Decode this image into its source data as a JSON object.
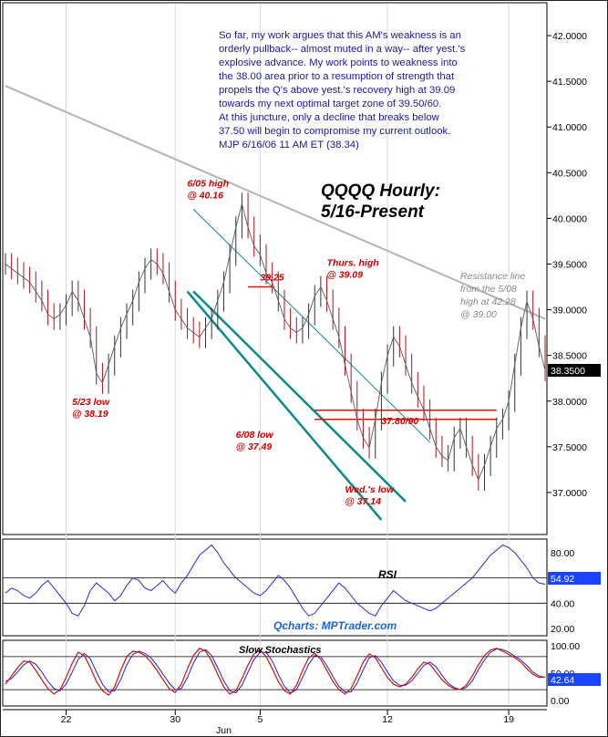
{
  "chart_data": {
    "type": "line",
    "title": "QQQQ Hourly:",
    "subtitle": "5/16-Present",
    "commentary": [
      "So far, my work argues that this AM's weakness is an",
      "orderly pullback-- almost muted in a way-- after yest.'s",
      "explosive advance. My work points to weakness into",
      "the 38.00 area prior to a resumption of strength that",
      "propels the Q's above yest.'s recovery high at 39.09",
      "towards my next optimal target zone of 39.50/60.",
      "At this juncture, only a decline that breaks below",
      "37.50 will begin to compromise my current outlook.",
      "MJP  6/16/06 11 AM ET (38.34)"
    ],
    "x_axis": {
      "ticks": [
        {
          "label": "22",
          "bar": 10
        },
        {
          "label": "30",
          "bar": 28
        },
        {
          "label": "5",
          "bar": 42
        },
        {
          "label": "12",
          "bar": 63
        },
        {
          "label": "19",
          "bar": 83
        }
      ],
      "month_label": {
        "label": "Jun",
        "bar": 36
      }
    },
    "price": {
      "ylim": [
        36.55,
        42.35
      ],
      "ticks": [
        "37.0000",
        "37.5000",
        "38.0000",
        "38.5000",
        "39.0000",
        "39.5000",
        "40.0000",
        "40.5000",
        "41.0000",
        "41.5000",
        "42.0000"
      ],
      "tick_values": [
        37.0,
        37.5,
        38.0,
        38.5,
        39.0,
        39.5,
        40.0,
        40.5,
        41.0,
        41.5,
        42.0
      ],
      "last_price_label": "38.3500",
      "last_price": 38.35,
      "closes": [
        39.5,
        39.45,
        39.4,
        39.35,
        39.3,
        39.2,
        39.1,
        38.95,
        38.9,
        38.95,
        39.05,
        39.2,
        39.1,
        38.9,
        38.7,
        38.3,
        38.2,
        38.4,
        38.6,
        38.8,
        38.95,
        39.1,
        39.3,
        39.45,
        39.55,
        39.5,
        39.4,
        39.2,
        39.0,
        38.9,
        38.8,
        38.75,
        38.7,
        38.8,
        38.9,
        39.1,
        39.3,
        39.6,
        39.9,
        40.16,
        39.9,
        39.7,
        39.6,
        39.4,
        39.3,
        39.1,
        38.9,
        38.8,
        38.75,
        38.8,
        38.95,
        39.15,
        39.25,
        39.1,
        38.9,
        38.7,
        38.4,
        38.1,
        37.8,
        37.6,
        37.49,
        37.8,
        38.2,
        38.5,
        38.7,
        38.6,
        38.4,
        38.2,
        38.05,
        37.9,
        37.7,
        37.5,
        37.4,
        37.35,
        37.6,
        37.7,
        37.5,
        37.3,
        37.14,
        37.3,
        37.5,
        37.7,
        37.8,
        38.0,
        38.4,
        38.8,
        39.09,
        38.9,
        38.6,
        38.34
      ],
      "trend_channel": [
        {
          "x1": 30,
          "y1": 39.2,
          "x2": 62,
          "y2": 36.7
        },
        {
          "x1": 31,
          "y1": 39.2,
          "x2": 66,
          "y2": 36.9
        }
      ],
      "support_line": {
        "x1": 31,
        "y1": 40.1,
        "x2": 70,
        "y2": 37.55
      },
      "resistance_line": {
        "x1": 0,
        "y1": 41.45,
        "x2": 89,
        "y2": 38.9
      },
      "zone_lines": [
        {
          "x1": 51,
          "x2": 81,
          "y": 37.9
        },
        {
          "x1": 51,
          "x2": 81,
          "y": 37.8
        }
      ],
      "marker_39_25": {
        "x1": 40,
        "x2": 44,
        "y": 39.25
      }
    },
    "annotations": [
      {
        "text": "6/05 high",
        "text2": "@ 40.16",
        "color": "#cc0000",
        "bar": 30,
        "y": 40.35
      },
      {
        "text": "5/23 low",
        "text2": "@ 38.19",
        "color": "#cc0000",
        "bar": 11,
        "y": 37.96
      },
      {
        "text": "39.25",
        "text2": "",
        "color": "#cc0000",
        "bar": 42,
        "y": 39.32
      },
      {
        "text": "6/08 low",
        "text2": "@ 37.49",
        "color": "#cc0000",
        "bar": 38,
        "y": 37.6
      },
      {
        "text": "Thurs. high",
        "text2": "@ 39.09",
        "color": "#cc0000",
        "bar": 53,
        "y": 39.48
      },
      {
        "text": "Wed.'s low",
        "text2": "@ 37.14",
        "color": "#cc0000",
        "bar": 56,
        "y": 37.0
      },
      {
        "text": "37.80/90",
        "text2": "",
        "color": "#cc0000",
        "bar": 62,
        "y": 37.75
      }
    ],
    "resistance_note": [
      "Resistance line",
      "from the 5/08",
      "high at 42.28",
      "@ 39.00"
    ],
    "rsi": {
      "label": "RSI",
      "ylim": [
        15,
        90
      ],
      "ticks": [
        "20.00",
        "40.00",
        "60.00",
        "80.00"
      ],
      "tick_values": [
        20,
        40,
        60,
        80
      ],
      "current_label": "54.92",
      "current": 54.92,
      "values": [
        48,
        52,
        50,
        46,
        44,
        48,
        54,
        58,
        52,
        46,
        40,
        32,
        30,
        38,
        50,
        56,
        52,
        48,
        42,
        46,
        54,
        60,
        58,
        52,
        50,
        54,
        58,
        52,
        48,
        56,
        62,
        70,
        78,
        82,
        86,
        80,
        72,
        66,
        60,
        56,
        52,
        48,
        46,
        50,
        56,
        62,
        58,
        52,
        44,
        36,
        30,
        32,
        38,
        44,
        50,
        56,
        52,
        46,
        40,
        36,
        32,
        30,
        38,
        44,
        50,
        46,
        42,
        40,
        38,
        36,
        34,
        36,
        40,
        44,
        48,
        52,
        56,
        60,
        66,
        72,
        78,
        82,
        86,
        84,
        80,
        74,
        68,
        60,
        56,
        55
      ]
    },
    "stochastics": {
      "label": "Slow Stochastics",
      "ylim": [
        -8,
        108
      ],
      "ticks": [
        "0.00",
        "50.00",
        "100.00"
      ],
      "tick_values": [
        0,
        50,
        100
      ],
      "current_label": "42.64",
      "current": 42.64,
      "k": [
        30,
        45,
        60,
        72,
        70,
        55,
        38,
        22,
        12,
        20,
        42,
        68,
        88,
        82,
        60,
        35,
        18,
        10,
        25,
        55,
        80,
        90,
        88,
        82,
        70,
        55,
        38,
        22,
        15,
        30,
        58,
        82,
        95,
        90,
        72,
        48,
        25,
        12,
        18,
        40,
        65,
        85,
        92,
        80,
        58,
        35,
        18,
        12,
        28,
        55,
        78,
        86,
        75,
        55,
        35,
        20,
        12,
        22,
        45,
        70,
        85,
        78,
        60,
        42,
        30,
        25,
        30,
        42,
        58,
        70,
        66,
        52,
        38,
        28,
        22,
        20,
        28,
        45,
        65,
        82,
        92,
        95,
        90,
        84,
        78,
        70,
        58,
        48,
        42,
        43
      ],
      "d": [
        35,
        40,
        52,
        65,
        72,
        66,
        52,
        35,
        22,
        18,
        30,
        52,
        75,
        86,
        76,
        52,
        30,
        16,
        18,
        38,
        65,
        84,
        90,
        86,
        78,
        64,
        48,
        32,
        20,
        22,
        42,
        68,
        88,
        93,
        82,
        60,
        36,
        18,
        14,
        28,
        52,
        75,
        88,
        88,
        72,
        48,
        26,
        14,
        20,
        42,
        66,
        82,
        80,
        64,
        44,
        26,
        16,
        16,
        32,
        56,
        78,
        82,
        70,
        52,
        36,
        28,
        28,
        36,
        50,
        64,
        70,
        62,
        46,
        32,
        24,
        20,
        24,
        36,
        56,
        74,
        88,
        94,
        93,
        88,
        81,
        74,
        64,
        52,
        45,
        42
      ]
    }
  },
  "watermark": "Qcharts: MPTrader.com",
  "colors": {
    "price_line": "#5a5a5a",
    "resistance": "#b3b3b3",
    "channel": "#0a8a8a",
    "annotation": "#cc0000",
    "rsi_line": "#2a2ad0",
    "stoch_k": "#cc1111",
    "stoch_d": "#2222cc",
    "watermark": "#1a66cc",
    "commentary": "#1a1a99",
    "badge_bg": "#000000",
    "badge_blue": "#1a44ff"
  }
}
